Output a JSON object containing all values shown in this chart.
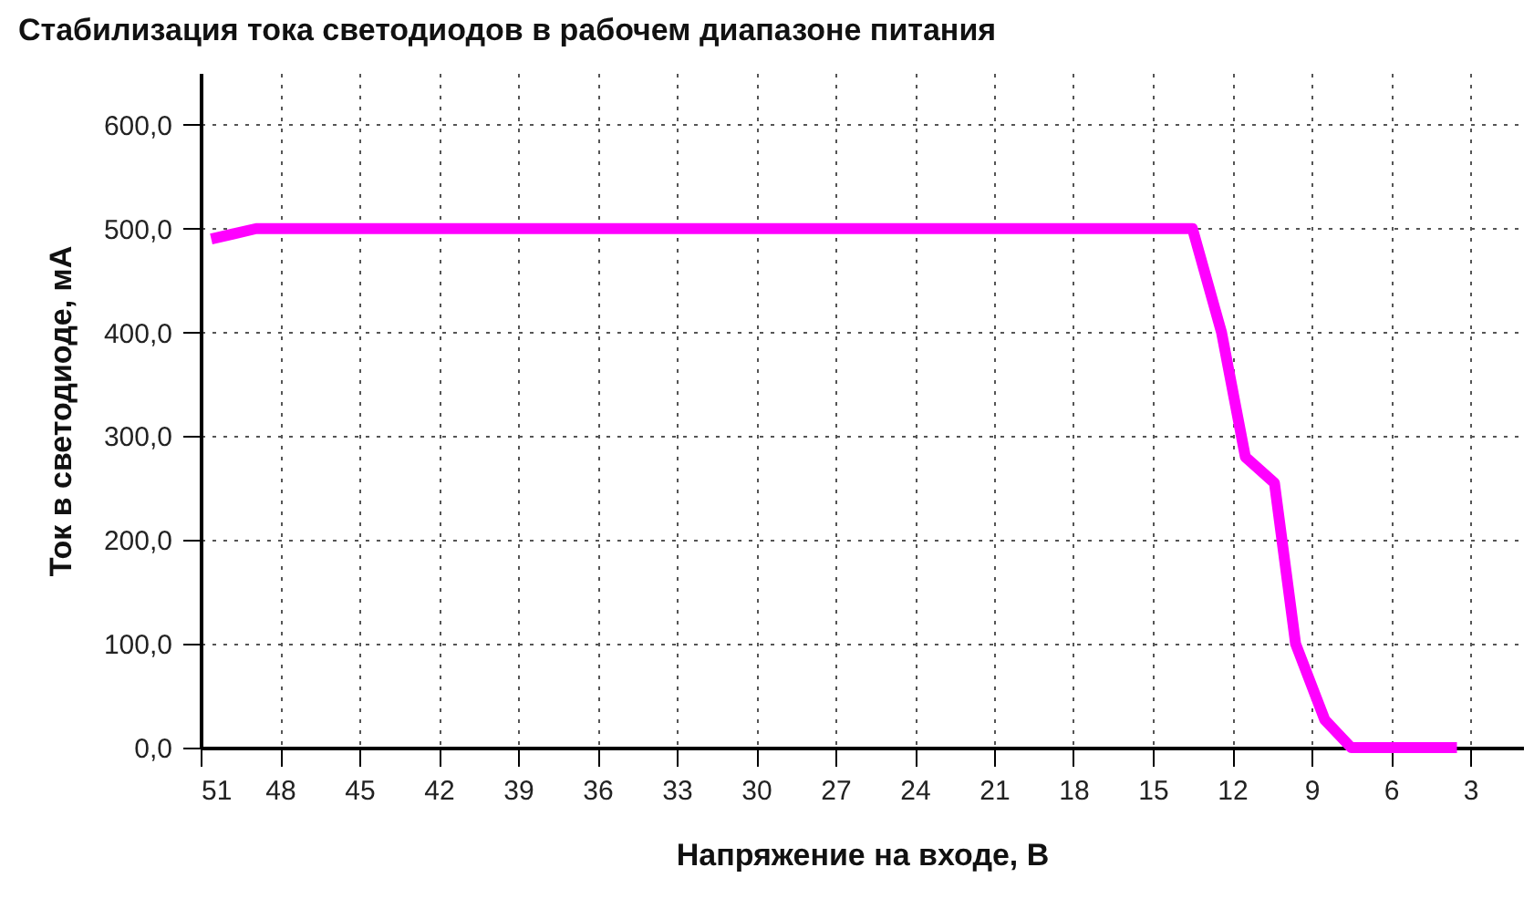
{
  "chart_data": {
    "type": "line",
    "title": "Стабилизация тока светодиодов в рабочем диапазоне питания",
    "xlabel": "Напряжение на входе, В",
    "ylabel": "Ток в светодиоде, мА",
    "x": [
      50.6,
      48.9,
      13.5,
      12.4,
      11.5,
      10.4,
      9.6,
      8.5,
      7.5,
      3.5
    ],
    "values": [
      490,
      500,
      500,
      400,
      280,
      255,
      100,
      27,
      0,
      0
    ],
    "color": "#ff00ff",
    "xlim": [
      51,
      1
    ],
    "xticks": [
      51,
      48,
      45,
      42,
      39,
      36,
      33,
      30,
      27,
      24,
      21,
      18,
      15,
      12,
      9,
      6,
      3
    ],
    "ylim": [
      0,
      650
    ],
    "yticks": [
      {
        "value": 0,
        "label": "0,0"
      },
      {
        "value": 100,
        "label": "100,0"
      },
      {
        "value": 200,
        "label": "200,0"
      },
      {
        "value": 300,
        "label": "300,0"
      },
      {
        "value": 400,
        "label": "400,0"
      },
      {
        "value": 500,
        "label": "500,0"
      },
      {
        "value": 600,
        "label": "600,0"
      }
    ],
    "grid": true,
    "marker": "none",
    "line_style": "solid"
  }
}
